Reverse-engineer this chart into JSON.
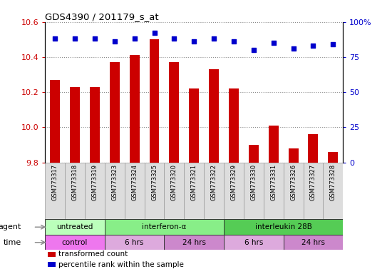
{
  "title": "GDS4390 / 201179_s_at",
  "samples": [
    "GSM773317",
    "GSM773318",
    "GSM773319",
    "GSM773323",
    "GSM773324",
    "GSM773325",
    "GSM773320",
    "GSM773321",
    "GSM773322",
    "GSM773329",
    "GSM773330",
    "GSM773331",
    "GSM773326",
    "GSM773327",
    "GSM773328"
  ],
  "bar_values": [
    10.27,
    10.23,
    10.23,
    10.37,
    10.41,
    10.5,
    10.37,
    10.22,
    10.33,
    10.22,
    9.9,
    10.01,
    9.88,
    9.96,
    9.86
  ],
  "dot_values": [
    88,
    88,
    88,
    86,
    88,
    92,
    88,
    86,
    88,
    86,
    80,
    85,
    81,
    83,
    84
  ],
  "ylim_left": [
    9.8,
    10.6
  ],
  "ylim_right": [
    0,
    100
  ],
  "yticks_left": [
    9.8,
    10.0,
    10.2,
    10.4,
    10.6
  ],
  "yticks_right": [
    0,
    25,
    50,
    75,
    100
  ],
  "bar_color": "#cc0000",
  "dot_color": "#0000cc",
  "agent_groups": [
    {
      "text": "untreated",
      "start": 0,
      "end": 3,
      "color": "#bbffbb"
    },
    {
      "text": "interferon-α",
      "start": 3,
      "end": 9,
      "color": "#88ee88"
    },
    {
      "text": "interleukin 28B",
      "start": 9,
      "end": 15,
      "color": "#55cc55"
    }
  ],
  "time_groups": [
    {
      "text": "control",
      "start": 0,
      "end": 3,
      "color": "#ee77ee"
    },
    {
      "text": "6 hrs",
      "start": 3,
      "end": 6,
      "color": "#ddaadd"
    },
    {
      "text": "24 hrs",
      "start": 6,
      "end": 9,
      "color": "#cc88cc"
    },
    {
      "text": "6 hrs",
      "start": 9,
      "end": 12,
      "color": "#ddaadd"
    },
    {
      "text": "24 hrs",
      "start": 12,
      "end": 15,
      "color": "#cc88cc"
    }
  ],
  "legend_items": [
    {
      "label": "transformed count",
      "color": "#cc0000"
    },
    {
      "label": "percentile rank within the sample",
      "color": "#0000cc"
    }
  ],
  "tick_color_left": "#cc0000",
  "tick_color_right": "#0000cc",
  "bg_color": "#ffffff",
  "plot_bg": "#ffffff",
  "grid_color": "#888888"
}
